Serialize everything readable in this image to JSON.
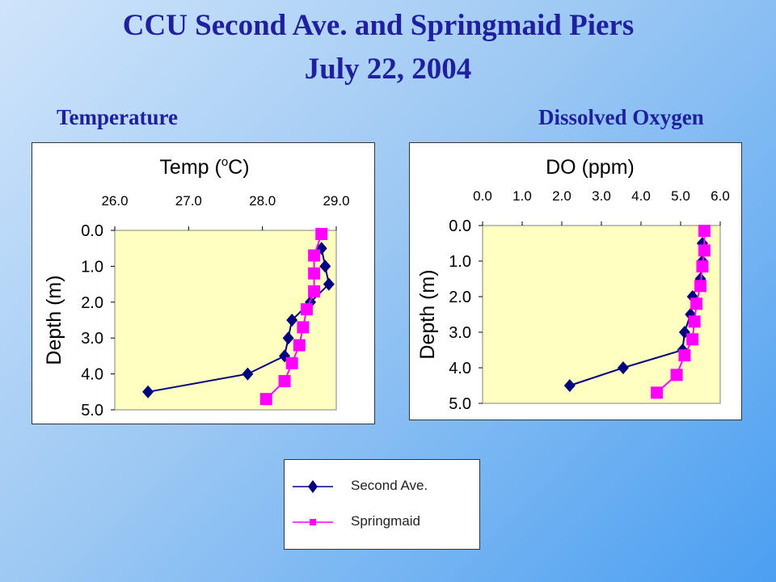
{
  "page": {
    "title_line1": "CCU Second Ave. and Springmaid Piers",
    "title_line2": "July 22, 2004",
    "subtitle_left": "Temperature",
    "subtitle_right": "Dissolved Oxygen"
  },
  "legend": [
    {
      "label": "Second Ave.",
      "color": "#000080",
      "marker": "diamond"
    },
    {
      "label": "Springmaid",
      "color": "#ff00ff",
      "marker": "square"
    }
  ],
  "chart_data": [
    {
      "type": "line",
      "title": "Temp (oC)",
      "xlabel": "",
      "ylabel": "Depth (m)",
      "xlim": [
        26.0,
        29.0
      ],
      "ylim": [
        0.0,
        5.0
      ],
      "y_inverted": true,
      "x_axis_position": "top",
      "x_ticks": [
        "26.0",
        "27.0",
        "28.0",
        "29.0"
      ],
      "y_ticks": [
        "0.0",
        "1.0",
        "2.0",
        "3.0",
        "4.0",
        "5.0"
      ],
      "plot_background": "#ffffc0",
      "series": [
        {
          "name": "Second Ave.",
          "color": "#000080",
          "marker": "diamond",
          "points": [
            [
              28.8,
              0.5
            ],
            [
              28.85,
              1.0
            ],
            [
              28.9,
              1.5
            ],
            [
              28.65,
              2.0
            ],
            [
              28.4,
              2.5
            ],
            [
              28.35,
              3.0
            ],
            [
              28.3,
              3.5
            ],
            [
              27.8,
              4.0
            ],
            [
              26.45,
              4.5
            ]
          ]
        },
        {
          "name": "Springmaid",
          "color": "#ff00ff",
          "marker": "square",
          "points": [
            [
              28.8,
              0.1
            ],
            [
              28.7,
              0.7
            ],
            [
              28.7,
              1.2
            ],
            [
              28.7,
              1.7
            ],
            [
              28.6,
              2.2
            ],
            [
              28.55,
              2.7
            ],
            [
              28.5,
              3.2
            ],
            [
              28.4,
              3.7
            ],
            [
              28.3,
              4.2
            ],
            [
              28.05,
              4.7
            ]
          ]
        }
      ]
    },
    {
      "type": "line",
      "title": "DO (ppm)",
      "xlabel": "",
      "ylabel": "Depth (m)",
      "xlim": [
        0.0,
        6.0
      ],
      "ylim": [
        0.0,
        5.0
      ],
      "y_inverted": true,
      "x_axis_position": "top",
      "x_ticks": [
        "0.0",
        "1.0",
        "2.0",
        "3.0",
        "4.0",
        "5.0",
        "6.0"
      ],
      "y_ticks": [
        "0.0",
        "1.0",
        "2.0",
        "3.0",
        "4.0",
        "5.0"
      ],
      "plot_background": "#ffffc0",
      "series": [
        {
          "name": "Second Ave.",
          "color": "#000080",
          "marker": "diamond",
          "points": [
            [
              5.55,
              0.5
            ],
            [
              5.55,
              1.0
            ],
            [
              5.5,
              1.5
            ],
            [
              5.3,
              2.0
            ],
            [
              5.25,
              2.5
            ],
            [
              5.1,
              3.0
            ],
            [
              5.05,
              3.5
            ],
            [
              3.55,
              4.0
            ],
            [
              2.2,
              4.5
            ]
          ]
        },
        {
          "name": "Springmaid",
          "color": "#ff00ff",
          "marker": "square",
          "points": [
            [
              5.6,
              0.15
            ],
            [
              5.6,
              0.7
            ],
            [
              5.55,
              1.15
            ],
            [
              5.5,
              1.7
            ],
            [
              5.4,
              2.2
            ],
            [
              5.35,
              2.7
            ],
            [
              5.3,
              3.2
            ],
            [
              5.1,
              3.65
            ],
            [
              4.9,
              4.2
            ],
            [
              4.4,
              4.7
            ]
          ]
        }
      ]
    }
  ]
}
